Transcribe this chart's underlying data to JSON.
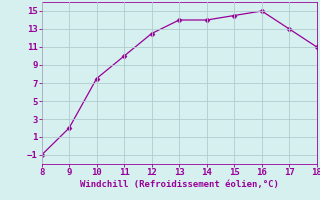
{
  "x": [
    8,
    9,
    10,
    11,
    12,
    13,
    14,
    15,
    16,
    17,
    18
  ],
  "y": [
    -1,
    2,
    7.5,
    10,
    12.5,
    14,
    14,
    14.5,
    15,
    13,
    11
  ],
  "line_color": "#990099",
  "marker_color": "#990099",
  "bg_color": "#d6f0f0",
  "grid_color": "#b0cccc",
  "xlabel": "Windchill (Refroidissement éolien,°C)",
  "xlabel_color": "#990099",
  "tick_color": "#990099",
  "spine_color": "#990099",
  "xlim": [
    8,
    18
  ],
  "ylim": [
    -2,
    16
  ],
  "yticks": [
    -1,
    1,
    3,
    5,
    7,
    9,
    11,
    13,
    15
  ],
  "xticks": [
    8,
    9,
    10,
    11,
    12,
    13,
    14,
    15,
    16,
    17,
    18
  ],
  "tick_fontsize": 6.5,
  "xlabel_fontsize": 6.5
}
